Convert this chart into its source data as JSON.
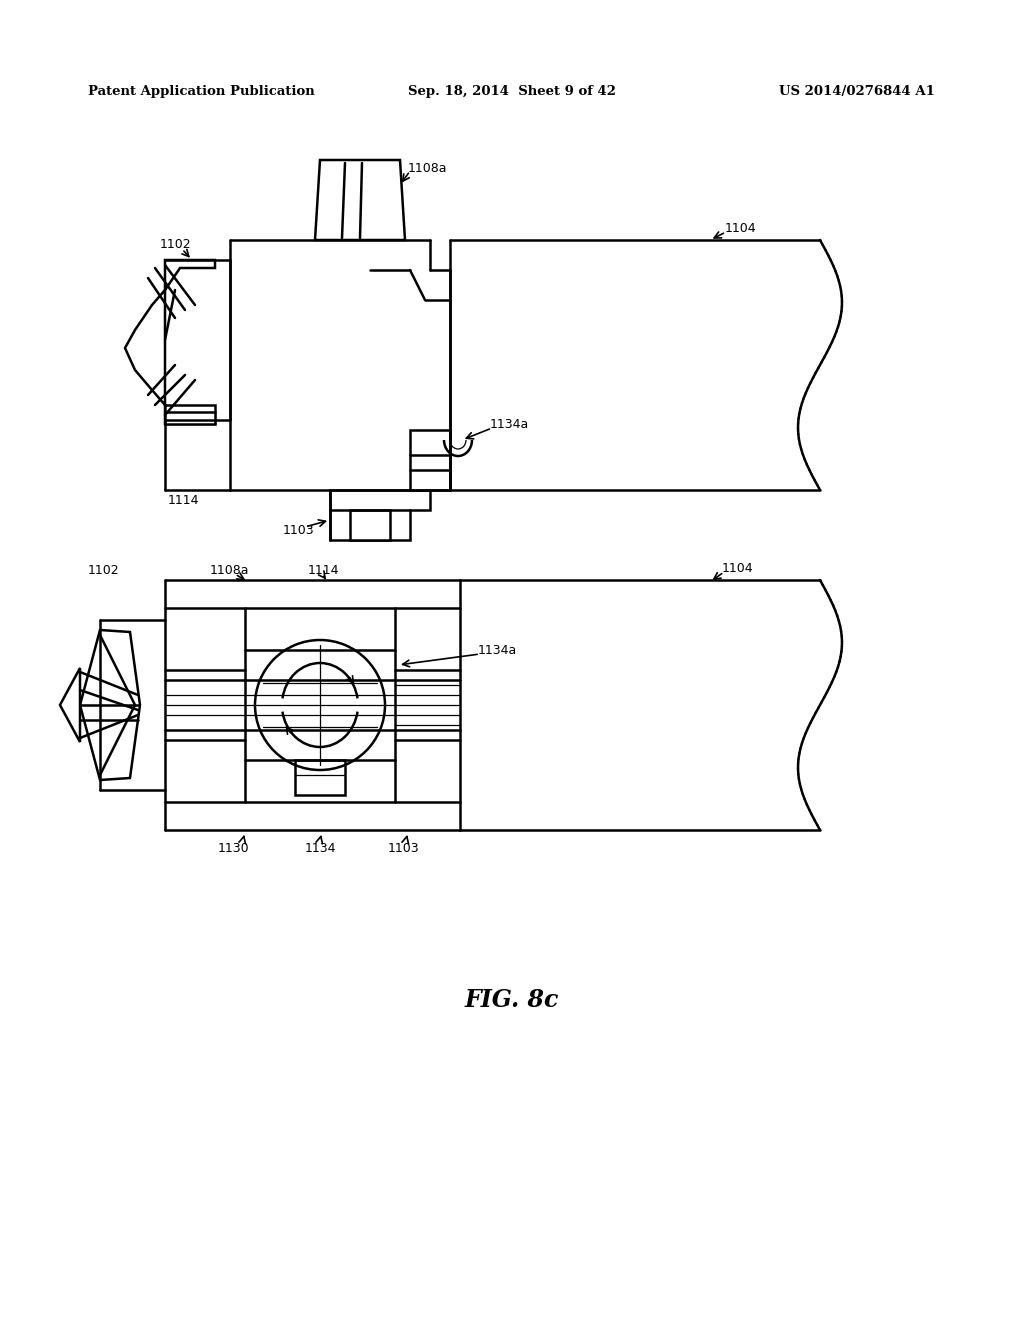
{
  "bg_color": "#ffffff",
  "header_left": "Patent Application Publication",
  "header_center": "Sep. 18, 2014  Sheet 9 of 42",
  "header_right": "US 2014/0276844 A1",
  "fig_label": "FIG. 8c",
  "line_color": "#000000",
  "lw": 1.8,
  "tlw": 0.9
}
